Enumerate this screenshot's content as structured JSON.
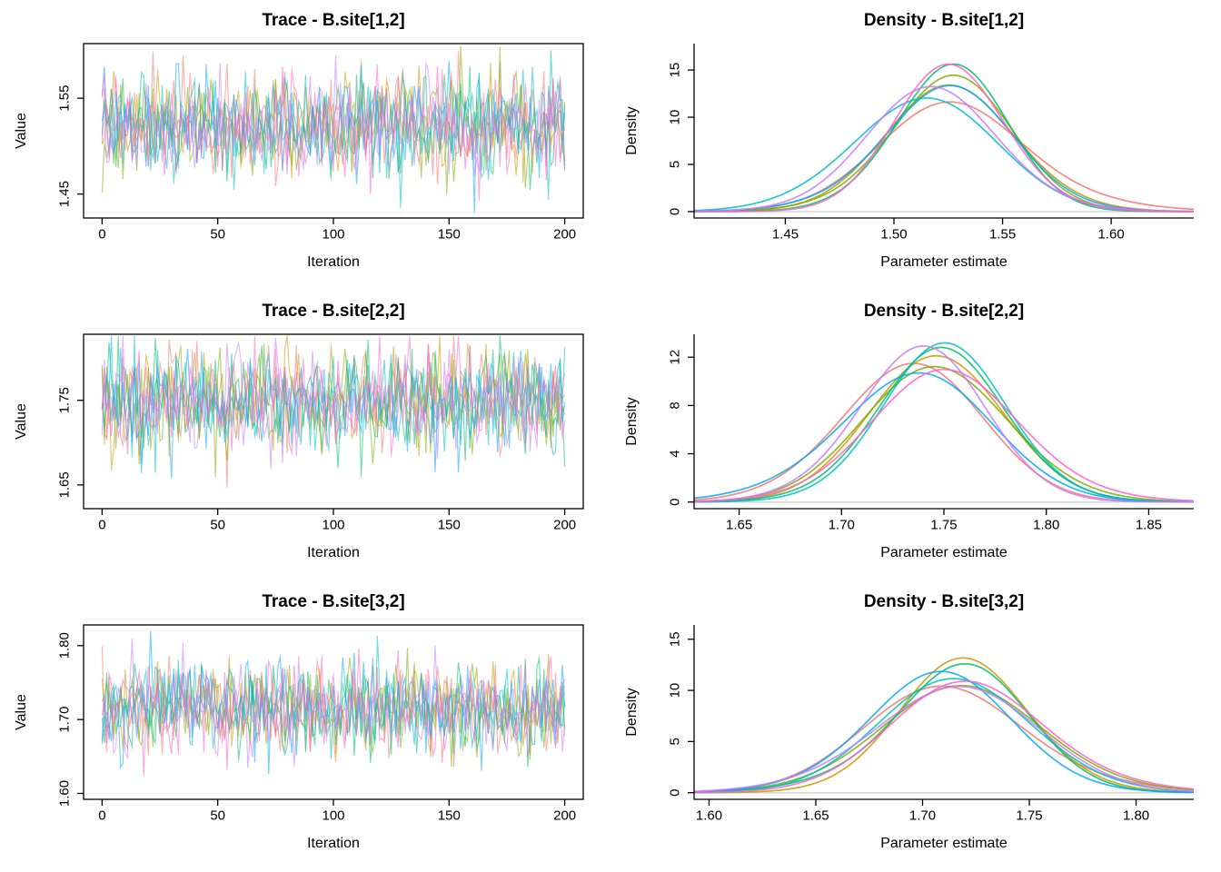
{
  "figure": {
    "kind": "mcmc-diagnostics",
    "rows": 3,
    "cols": 2,
    "background": "#ffffff",
    "axis_color": "#000000",
    "baseline_color": "#d4d4d4",
    "palette": [
      "#F8766D",
      "#CD9600",
      "#7CAE00",
      "#00BE67",
      "#00BFC4",
      "#00A9FF",
      "#C77CFF",
      "#FF61CC"
    ],
    "line_alpha_trace": 0.55,
    "line_alpha_density": 0.85
  },
  "chart_data": [
    {
      "type": "line",
      "subtype": "mcmc-trace",
      "title": "Trace - B.site[1,2]",
      "xlabel": "Iteration",
      "ylabel": "Value",
      "xlim": [
        -8,
        208
      ],
      "ylim": [
        1.425,
        1.607
      ],
      "xticks": {
        "values": [
          0,
          50,
          100,
          150,
          200
        ],
        "labels": [
          "0",
          "50",
          "100",
          "150",
          "200"
        ]
      },
      "yticks": {
        "values": [
          1.45,
          1.55
        ],
        "labels": [
          "1.45",
          "1.55"
        ]
      },
      "n_chains": 8,
      "n_iterations": 200,
      "mean": 1.522,
      "sd": 0.027,
      "box": true
    },
    {
      "type": "line",
      "subtype": "density",
      "title": "Density - B.site[1,2]",
      "xlabel": "Parameter estimate",
      "ylabel": "Density",
      "xlim": [
        1.408,
        1.638
      ],
      "ylim": [
        -0.68,
        17.8
      ],
      "xticks": {
        "values": [
          1.45,
          1.5,
          1.55,
          1.6
        ],
        "labels": [
          "1.45",
          "1.50",
          "1.55",
          "1.60"
        ]
      },
      "yticks": {
        "values": [
          0,
          5,
          10,
          15
        ],
        "labels": [
          "0",
          "5",
          "10",
          "15"
        ]
      },
      "n_chains": 8,
      "mean": 1.523,
      "sd": 0.027,
      "peak_density": 15.5,
      "box": false
    },
    {
      "type": "line",
      "subtype": "mcmc-trace",
      "title": "Trace - B.site[2,2]",
      "xlabel": "Iteration",
      "ylabel": "Value",
      "xlim": [
        -8,
        208
      ],
      "ylim": [
        1.622,
        1.828
      ],
      "xticks": {
        "values": [
          0,
          50,
          100,
          150,
          200
        ],
        "labels": [
          "0",
          "50",
          "100",
          "150",
          "200"
        ]
      },
      "yticks": {
        "values": [
          1.65,
          1.75
        ],
        "labels": [
          "1.65",
          "1.75"
        ]
      },
      "n_chains": 8,
      "n_iterations": 200,
      "mean": 1.747,
      "sd": 0.03,
      "box": true
    },
    {
      "type": "line",
      "subtype": "density",
      "title": "Density - B.site[2,2]",
      "xlabel": "Parameter estimate",
      "ylabel": "Density",
      "xlim": [
        1.628,
        1.872
      ],
      "ylim": [
        -0.55,
        13.9
      ],
      "xticks": {
        "values": [
          1.65,
          1.7,
          1.75,
          1.8,
          1.85
        ],
        "labels": [
          "1.65",
          "1.70",
          "1.75",
          "1.80",
          "1.85"
        ]
      },
      "yticks": {
        "values": [
          0,
          4,
          8,
          12
        ],
        "labels": [
          "0",
          "4",
          "8",
          "12"
        ]
      },
      "n_chains": 8,
      "mean": 1.748,
      "sd": 0.031,
      "peak_density": 13.0,
      "box": false
    },
    {
      "type": "line",
      "subtype": "mcmc-trace",
      "title": "Trace - B.site[3,2]",
      "xlabel": "Iteration",
      "ylabel": "Value",
      "xlim": [
        -8,
        208
      ],
      "ylim": [
        1.592,
        1.828
      ],
      "xticks": {
        "values": [
          0,
          50,
          100,
          150,
          200
        ],
        "labels": [
          "0",
          "50",
          "100",
          "150",
          "200"
        ]
      },
      "yticks": {
        "values": [
          1.6,
          1.7,
          1.8
        ],
        "labels": [
          "1.60",
          "1.70",
          "1.80"
        ]
      },
      "n_chains": 8,
      "n_iterations": 200,
      "mean": 1.716,
      "sd": 0.032,
      "box": true
    },
    {
      "type": "line",
      "subtype": "density",
      "title": "Density - B.site[3,2]",
      "xlabel": "Parameter estimate",
      "ylabel": "Density",
      "xlim": [
        1.593,
        1.827
      ],
      "ylim": [
        -0.65,
        16.4
      ],
      "xticks": {
        "values": [
          1.6,
          1.65,
          1.7,
          1.75,
          1.8
        ],
        "labels": [
          "1.60",
          "1.65",
          "1.70",
          "1.75",
          "1.80"
        ]
      },
      "yticks": {
        "values": [
          0,
          5,
          10,
          15
        ],
        "labels": [
          "0",
          "5",
          "10",
          "15"
        ]
      },
      "n_chains": 8,
      "mean": 1.714,
      "sd": 0.031,
      "peak_density": 14.0,
      "box": false
    }
  ]
}
